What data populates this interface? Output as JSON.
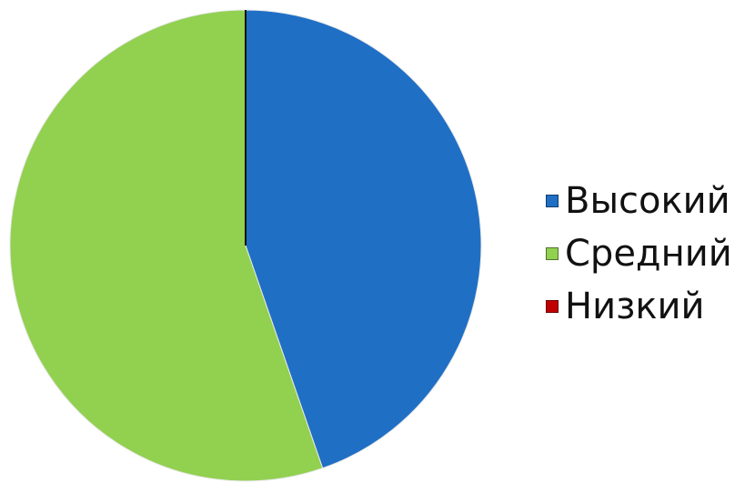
{
  "chart_data": {
    "type": "pie",
    "series": [
      {
        "name": "Высокий",
        "value": 44.7,
        "color": "#1F6FC5"
      },
      {
        "name": "Средний",
        "value": 55.3,
        "color": "#92D050"
      },
      {
        "name": "Низкий",
        "value": 0,
        "color": "#C00000"
      }
    ],
    "title": "",
    "legend_position": "right",
    "start_angle": "top",
    "direction": "clockwise"
  }
}
